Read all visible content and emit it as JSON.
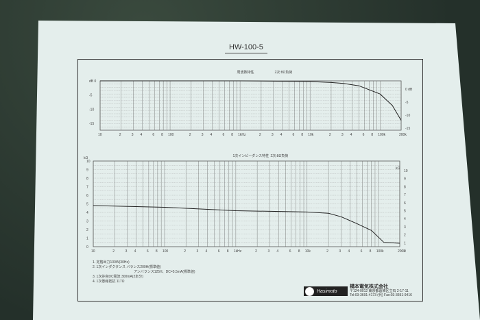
{
  "document": {
    "title": "HW-100-5",
    "notes": [
      "1. 定格出力100W(30Hz)",
      "2. 1次インダクタンス バランス200H(標準値)",
      "アンバランス125H、DC=5.5mA(標準値)",
      "3. 1次許容DC電流 300mA(2本分)",
      "4. 1次巻線抵抗 117Ω"
    ],
    "company": {
      "logo": "Hasimoto",
      "name": "橋本電気株式会社",
      "address": "〒124-0012 東京都葛飾区立石 2-17-11",
      "phone": "Tel:03-3691-4173 (代)  Fax:03-3691-9416"
    }
  },
  "chart_data": [
    {
      "type": "line",
      "title": "周波数特性",
      "subtitle": "2次:8Ω負荷",
      "xscale": "log",
      "xlim": [
        10,
        200000
      ],
      "ylim": [
        -15,
        0
      ],
      "grid": true,
      "ylabel": "dB",
      "left_ticks": [
        "dB 0",
        "-5",
        "-10",
        "-15"
      ],
      "right_ticks": [
        "0 dB",
        "-5",
        "-10",
        "-15"
      ],
      "x_tick_labels": [
        "10",
        "2",
        "3",
        "4",
        "6",
        "8",
        "100",
        "2",
        "3",
        "4",
        "6",
        "8",
        "1kHz",
        "2",
        "3",
        "4",
        "6",
        "8",
        "10k",
        "2",
        "3",
        "4",
        "6",
        "8",
        "100k",
        "200k"
      ],
      "x": [
        10,
        100,
        1000,
        10000,
        20000,
        30000,
        50000,
        100000,
        150000,
        200000
      ],
      "y": [
        0,
        0,
        0,
        -0.2,
        -0.5,
        -0.8,
        -1.5,
        -4,
        -7.5,
        -12
      ]
    },
    {
      "type": "line",
      "title": "1次インピーダンス特性",
      "subtitle": "2次:8Ω負荷",
      "xscale": "log",
      "xlim": [
        10,
        200000
      ],
      "ylim": [
        0,
        10
      ],
      "grid": true,
      "ylabel": "kΩ",
      "left_ticks": [
        "0",
        "1",
        "2",
        "3",
        "4",
        "5",
        "6",
        "7",
        "8",
        "9",
        "10"
      ],
      "right_ticks": [
        "0",
        "1",
        "2",
        "3",
        "4",
        "5",
        "6",
        "7",
        "8",
        "9",
        "10"
      ],
      "x_tick_labels": [
        "10",
        "2",
        "3",
        "4",
        "6",
        "8",
        "100",
        "2",
        "3",
        "4",
        "6",
        "8",
        "1kHz",
        "2",
        "3",
        "4",
        "6",
        "8",
        "10k",
        "2",
        "3",
        "4",
        "6",
        "8",
        "100k",
        "200k"
      ],
      "x": [
        10,
        100,
        1000,
        10000,
        20000,
        30000,
        50000,
        80000,
        120000,
        200000
      ],
      "y": [
        4.8,
        4.6,
        4.2,
        4.05,
        3.9,
        3.5,
        2.7,
        1.9,
        0.5,
        0.4
      ]
    }
  ]
}
